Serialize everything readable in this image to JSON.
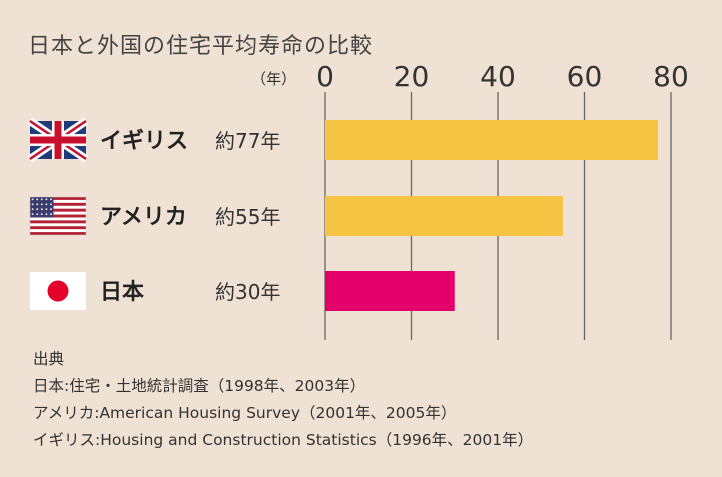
{
  "chart_data": {
    "type": "bar",
    "orientation": "horizontal",
    "title": "日本と外国の住宅平均寿命の比較",
    "unit_label": "（年）",
    "x_ticks": [
      "0",
      "20",
      "40",
      "60",
      "80"
    ],
    "xlim": [
      0,
      80
    ],
    "grid": true,
    "categories": [
      "イギリス",
      "アメリカ",
      "日本"
    ],
    "values": [
      77,
      55,
      30
    ],
    "value_labels": [
      "約77年",
      "約55年",
      "約30年"
    ],
    "flags": [
      "uk-flag-icon",
      "us-flag-icon",
      "japan-flag-icon"
    ],
    "bar_colors": [
      "#f7c343",
      "#f7c343",
      "#e4006b"
    ]
  },
  "colors": {
    "background": "#efe1d3",
    "grid": "#666666",
    "highlight": "#e4006b",
    "bar": "#f7c343"
  },
  "source": {
    "heading": "出典",
    "lines": [
      "日本:住宅・土地統計調査（1998年、2003年）",
      "アメリカ:American Housing Survey（2001年、2005年）",
      "イギリス:Housing and Construction Statistics（1996年、2001年）"
    ]
  }
}
